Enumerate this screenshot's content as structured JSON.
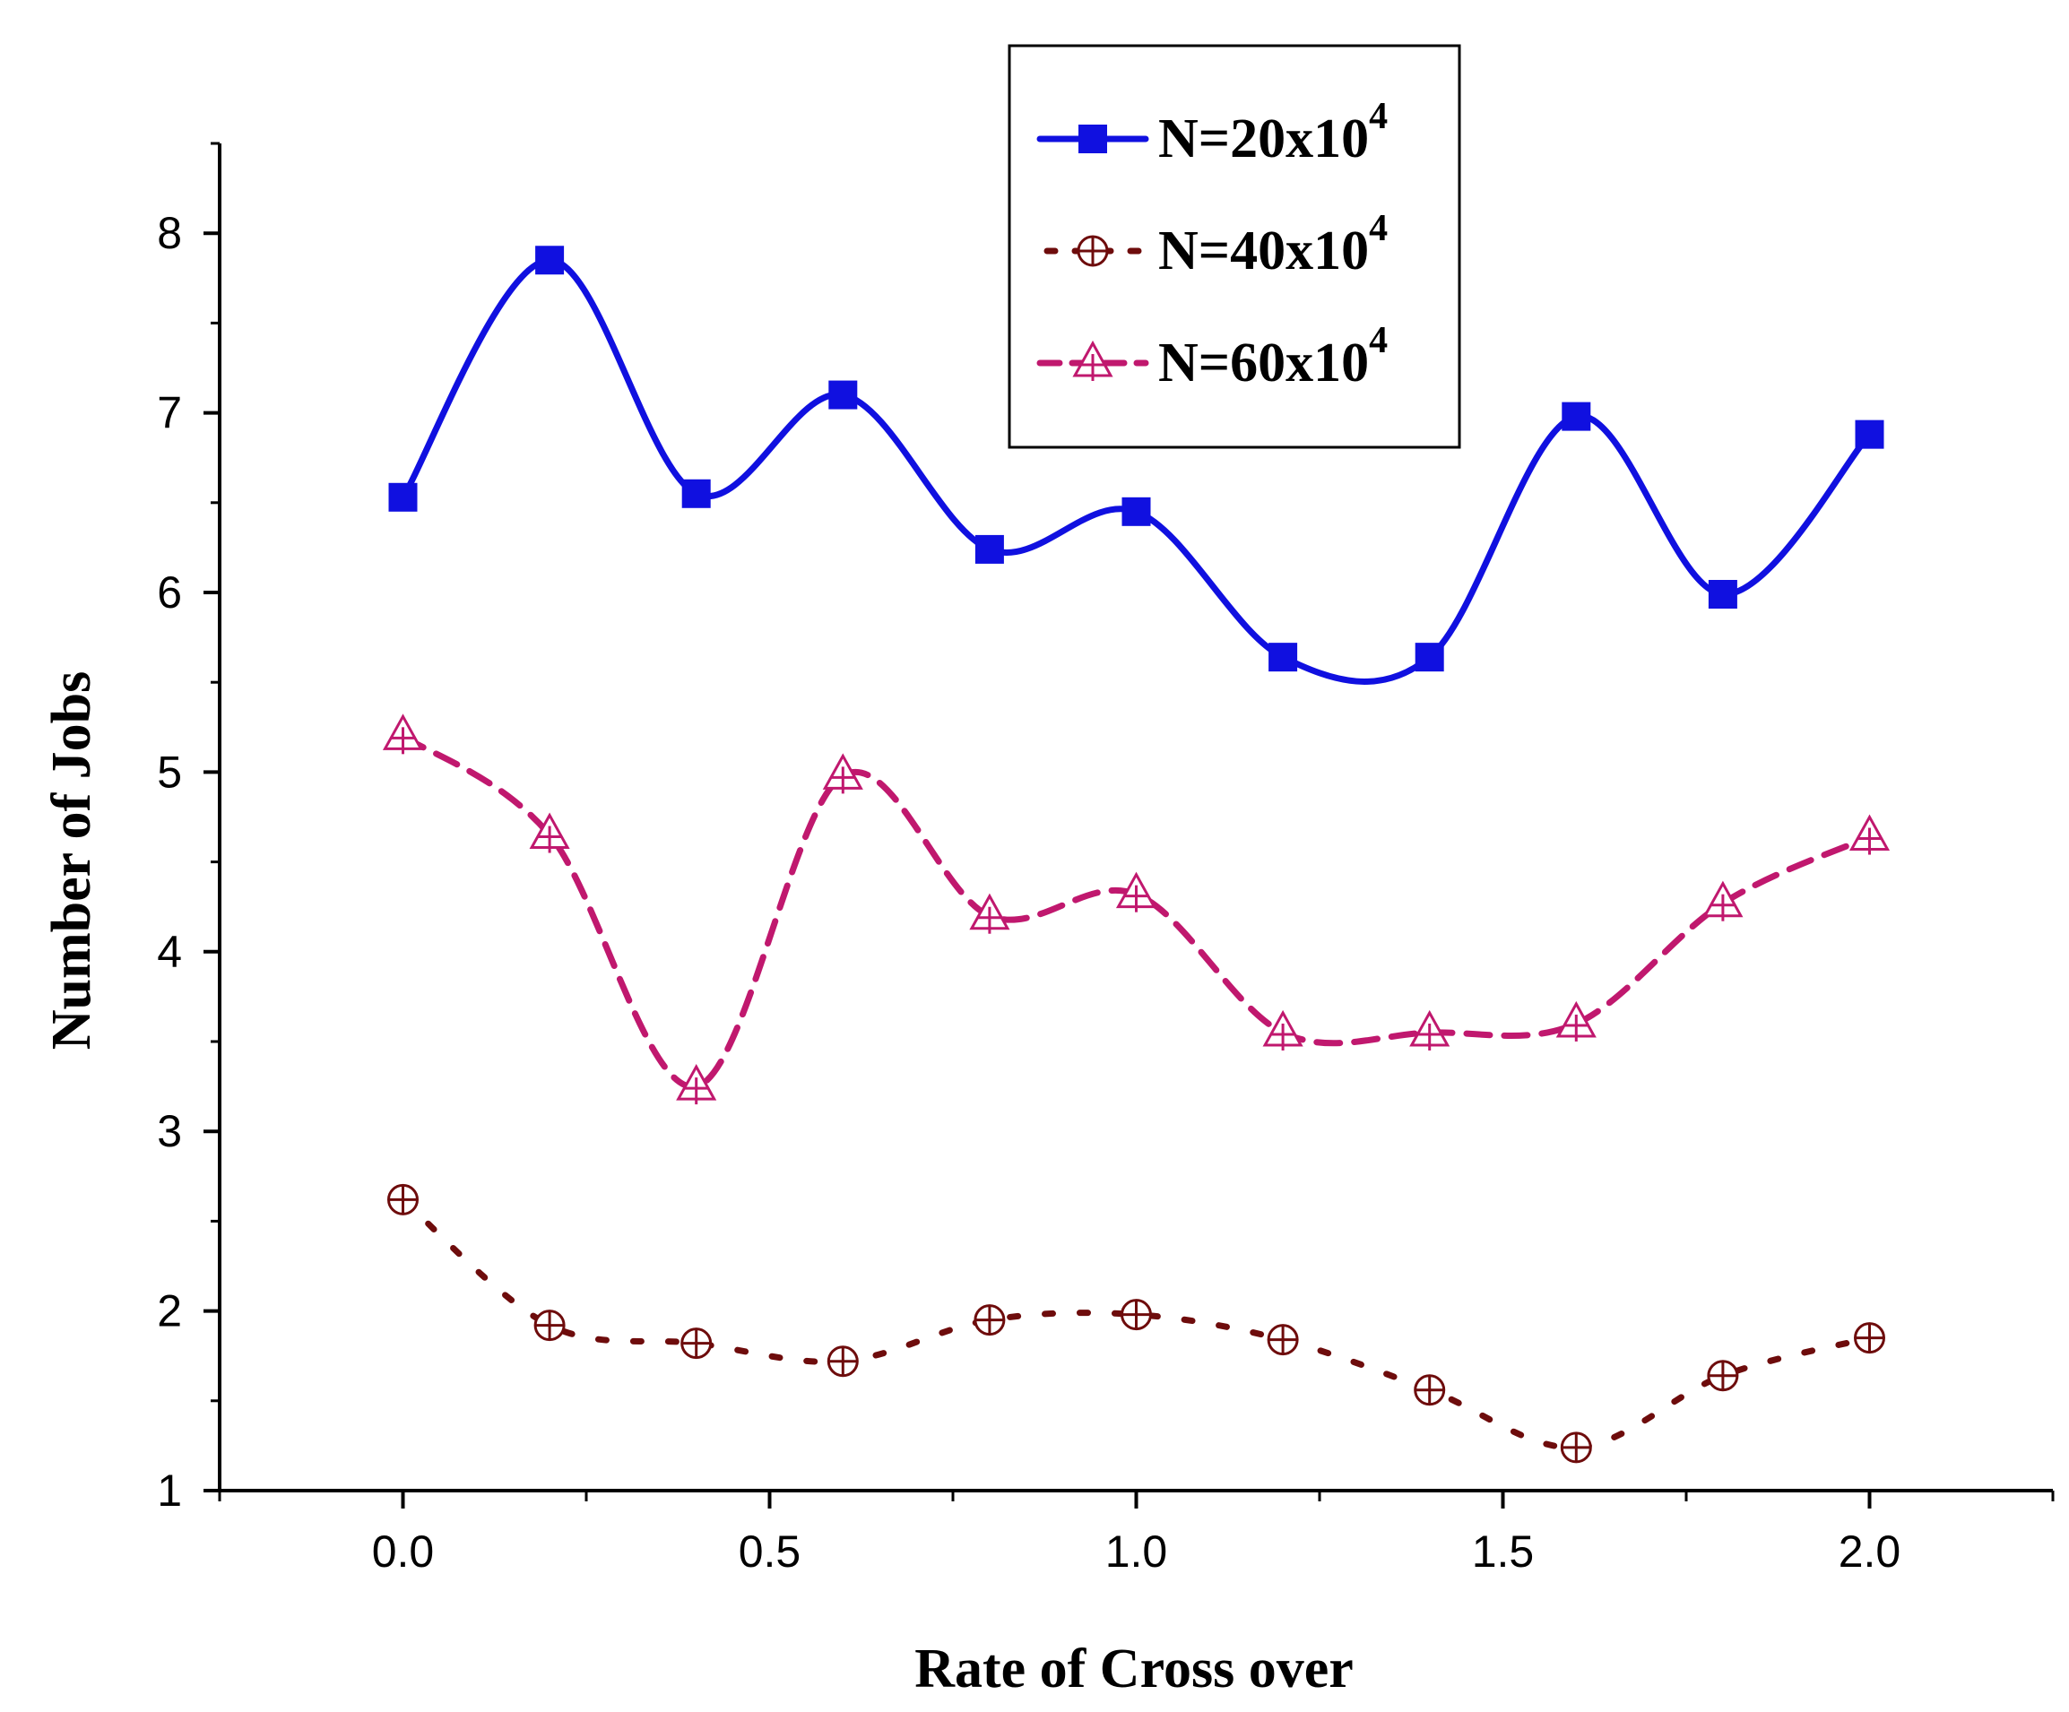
{
  "chart_data": {
    "type": "line",
    "title": "",
    "xlabel": "Rate of Cross over",
    "ylabel": "Number of Jobs",
    "xlim": [
      -0.25,
      2.25
    ],
    "ylim": [
      1,
      8.5
    ],
    "xticks": [
      0.0,
      0.5,
      1.0,
      1.5,
      2.0
    ],
    "xtick_labels": [
      "0.0",
      "0.5",
      "1.0",
      "1.5",
      "2.0"
    ],
    "yticks": [
      1,
      2,
      3,
      4,
      5,
      6,
      7,
      8
    ],
    "ytick_labels": [
      "1",
      "2",
      "3",
      "4",
      "5",
      "6",
      "7",
      "8"
    ],
    "grid": false,
    "legend_position": "top-center",
    "x": [
      0.0,
      0.2,
      0.4,
      0.6,
      0.8,
      1.0,
      1.2,
      1.4,
      1.6,
      1.8,
      2.0
    ],
    "series": [
      {
        "name": "N=20x10^4",
        "label_main": "N=20x10",
        "label_sup": "4",
        "color": "#1010e0",
        "style": "solid",
        "marker": "square",
        "values": [
          6.53,
          7.85,
          6.55,
          7.1,
          6.24,
          6.45,
          5.64,
          5.64,
          6.98,
          5.99,
          6.88
        ]
      },
      {
        "name": "N=40x10^4",
        "label_main": "N=40x10",
        "label_sup": "4",
        "color": "#6e0c0c",
        "style": "dotted",
        "marker": "circle-plus",
        "values": [
          2.62,
          1.92,
          1.82,
          1.72,
          1.95,
          1.98,
          1.84,
          1.56,
          1.24,
          1.64,
          1.85
        ]
      },
      {
        "name": "N=60x10^4",
        "label_main": "N=60x10",
        "label_sup": "4",
        "color": "#c0186e",
        "style": "dashed",
        "marker": "triangle-plus",
        "values": [
          5.2,
          4.65,
          3.25,
          4.98,
          4.2,
          4.32,
          3.55,
          3.55,
          3.6,
          4.27,
          4.64
        ]
      }
    ]
  }
}
